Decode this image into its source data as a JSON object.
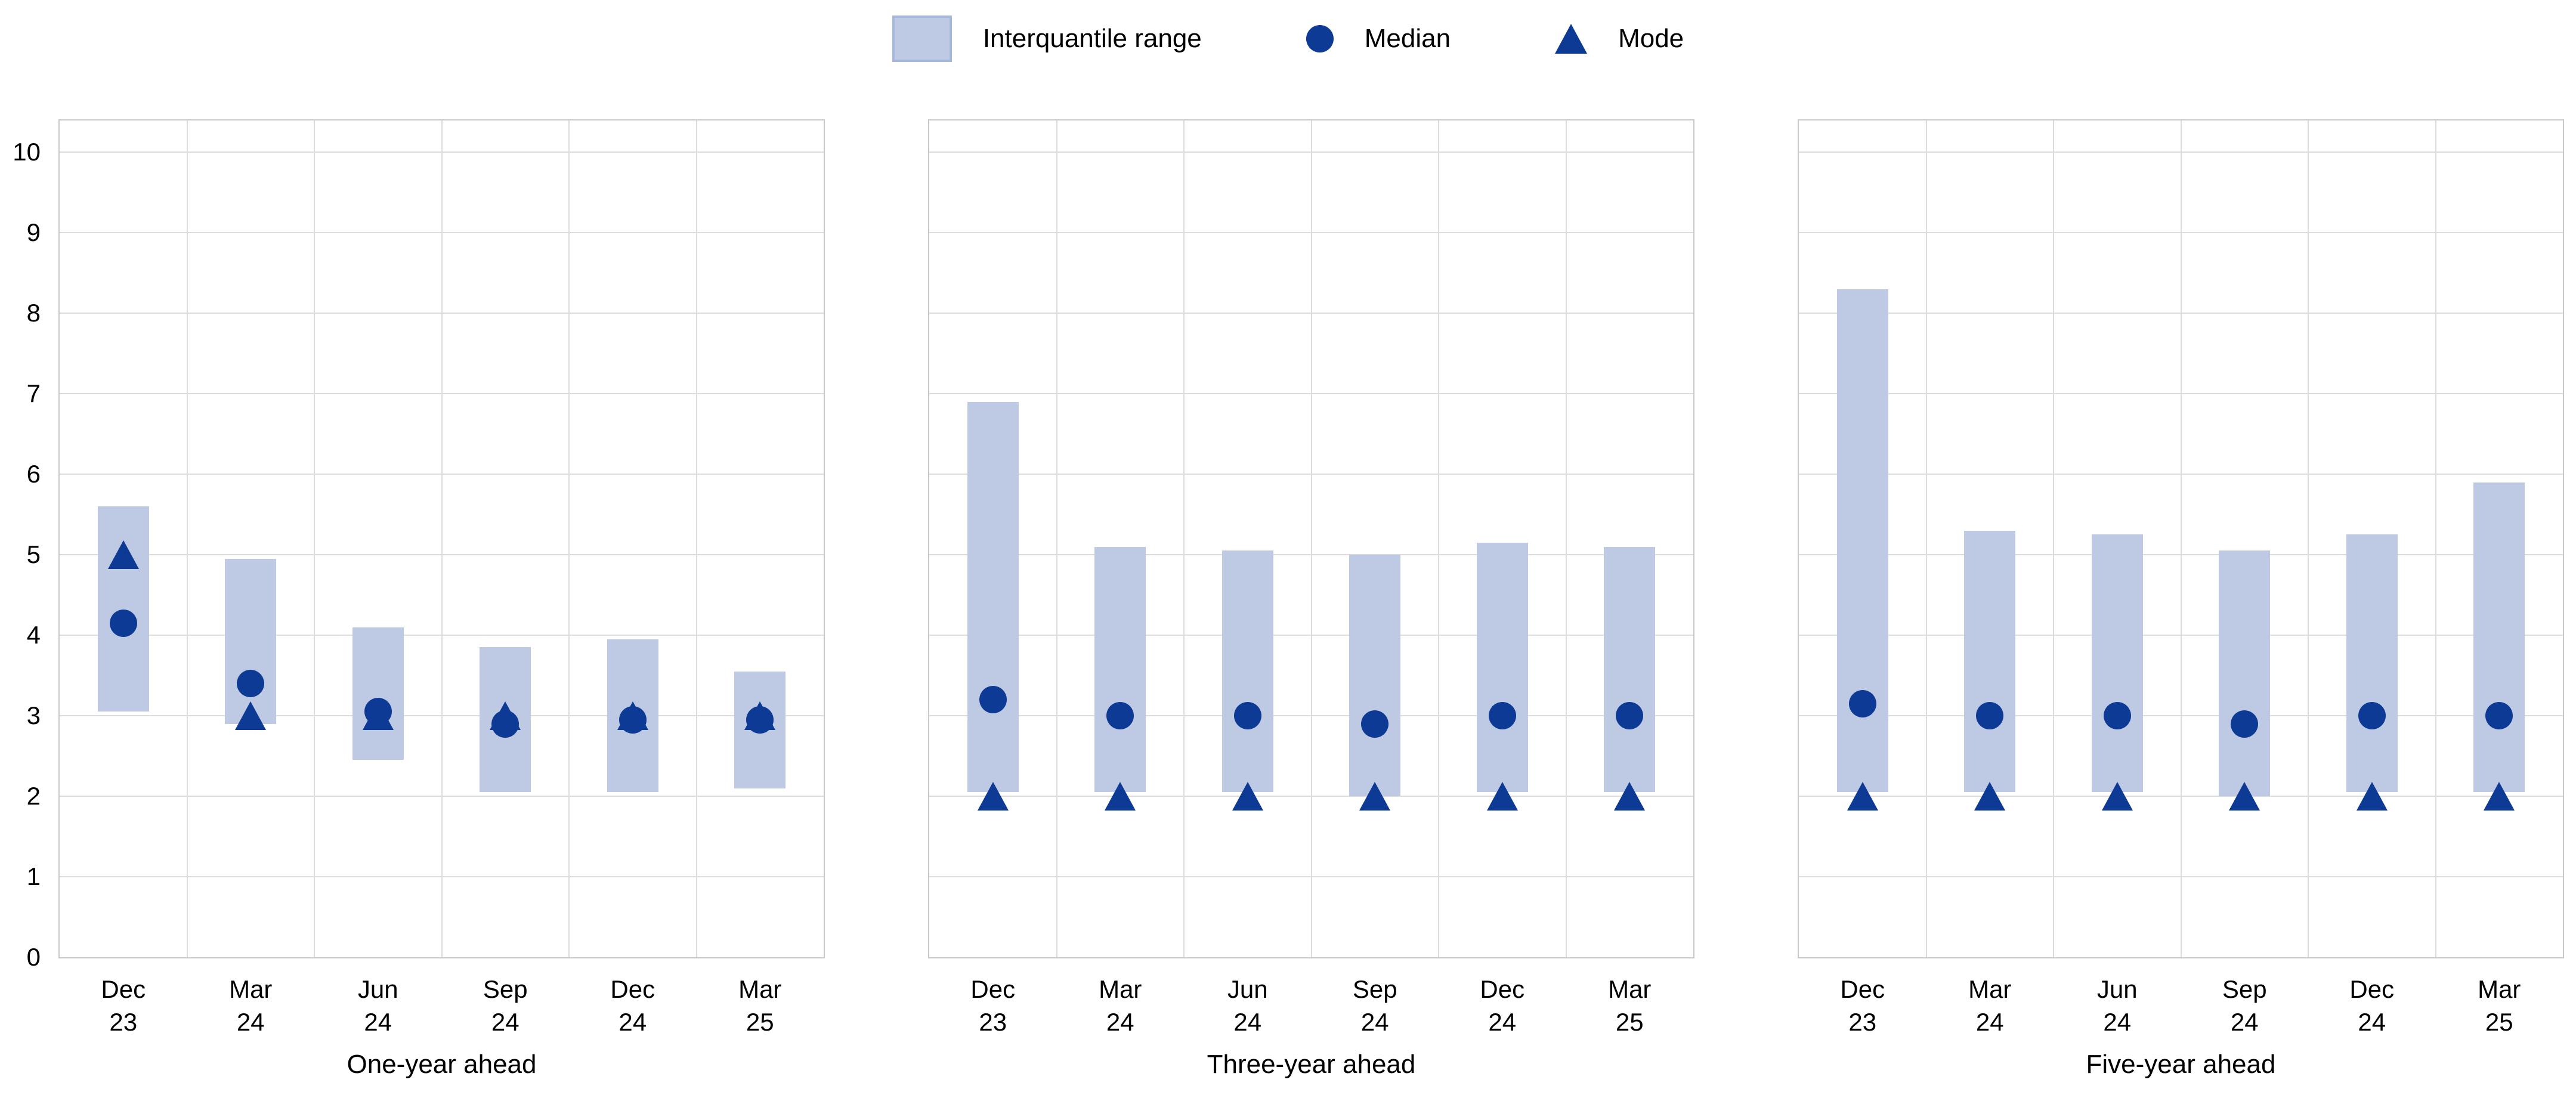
{
  "legend": {
    "items": [
      {
        "label": "Interquantile range",
        "marker": "swatch-icon"
      },
      {
        "label": "Median",
        "marker": "circle-icon"
      },
      {
        "label": "Mode",
        "marker": "triangle-icon"
      }
    ]
  },
  "colors": {
    "bar_fill": "#bec9e4",
    "swatch_border": "#a6b7dc",
    "marker": "#0d3a94",
    "gridline": "#dcdcdc",
    "panel_border": "#c9c9c9",
    "text": "#000000"
  },
  "y_axis": {
    "min": 0,
    "max": 10,
    "tick_step": 1,
    "ticks": [
      0,
      1,
      2,
      3,
      4,
      5,
      6,
      7,
      8,
      9,
      10
    ]
  },
  "chart_data": [
    {
      "type": "bar",
      "title": "One-year ahead",
      "categories": [
        [
          "Dec",
          "23"
        ],
        [
          "Mar",
          "24"
        ],
        [
          "Jun",
          "24"
        ],
        [
          "Sep",
          "24"
        ],
        [
          "Dec",
          "24"
        ],
        [
          "Mar",
          "25"
        ]
      ],
      "ylim": [
        0,
        10
      ],
      "grid": true,
      "legend_position": "top-center",
      "series": [
        {
          "name": "Interquantile range",
          "type": "range",
          "low": [
            3.05,
            2.9,
            2.45,
            2.05,
            2.05,
            2.1
          ],
          "high": [
            5.6,
            4.95,
            4.1,
            3.85,
            3.95,
            3.55
          ]
        },
        {
          "name": "Median",
          "type": "circle",
          "values": [
            4.15,
            3.4,
            3.05,
            2.9,
            2.95,
            2.95
          ]
        },
        {
          "name": "Mode",
          "type": "triangle",
          "values": [
            5.0,
            3.0,
            3.0,
            3.0,
            3.0,
            3.0
          ]
        }
      ]
    },
    {
      "type": "bar",
      "title": "Three-year ahead",
      "categories": [
        [
          "Dec",
          "23"
        ],
        [
          "Mar",
          "24"
        ],
        [
          "Jun",
          "24"
        ],
        [
          "Sep",
          "24"
        ],
        [
          "Dec",
          "24"
        ],
        [
          "Mar",
          "25"
        ]
      ],
      "ylim": [
        0,
        10
      ],
      "grid": true,
      "legend_position": "top-center",
      "series": [
        {
          "name": "Interquantile range",
          "type": "range",
          "low": [
            2.05,
            2.05,
            2.05,
            2.0,
            2.05,
            2.05
          ],
          "high": [
            6.9,
            5.1,
            5.05,
            5.0,
            5.15,
            5.1
          ]
        },
        {
          "name": "Median",
          "type": "circle",
          "values": [
            3.2,
            3.0,
            3.0,
            2.9,
            3.0,
            3.0
          ]
        },
        {
          "name": "Mode",
          "type": "triangle",
          "values": [
            2.0,
            2.0,
            2.0,
            2.0,
            2.0,
            2.0
          ]
        }
      ]
    },
    {
      "type": "bar",
      "title": "Five-year ahead",
      "categories": [
        [
          "Dec",
          "23"
        ],
        [
          "Mar",
          "24"
        ],
        [
          "Jun",
          "24"
        ],
        [
          "Sep",
          "24"
        ],
        [
          "Dec",
          "24"
        ],
        [
          "Mar",
          "25"
        ]
      ],
      "ylim": [
        0,
        10
      ],
      "grid": true,
      "legend_position": "top-center",
      "series": [
        {
          "name": "Interquantile range",
          "type": "range",
          "low": [
            2.05,
            2.05,
            2.05,
            2.0,
            2.05,
            2.05
          ],
          "high": [
            8.3,
            5.3,
            5.25,
            5.05,
            5.25,
            5.9
          ]
        },
        {
          "name": "Median",
          "type": "circle",
          "values": [
            3.15,
            3.0,
            3.0,
            2.9,
            3.0,
            3.0
          ]
        },
        {
          "name": "Mode",
          "type": "triangle",
          "values": [
            2.0,
            2.0,
            2.0,
            2.0,
            2.0,
            2.0
          ]
        }
      ]
    }
  ]
}
